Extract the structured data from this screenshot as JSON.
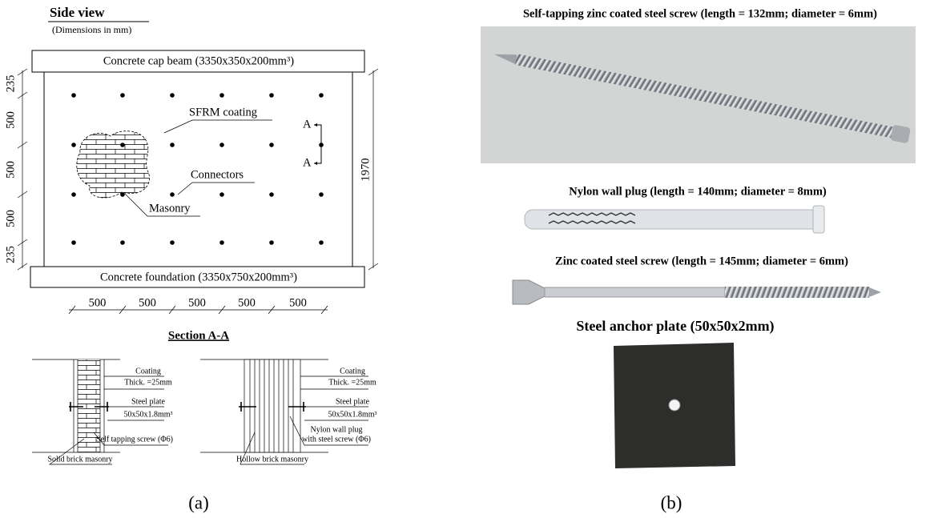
{
  "panel_a": {
    "title": "Side view",
    "subtitle": "(Dimensions in mm)",
    "cap_beam": "Concrete cap beam  (3350x350x200mm³)",
    "foundation": "Concrete foundation  (3350x750x200mm³)",
    "labels": {
      "coating": "SFRM coating",
      "connectors": "Connectors",
      "masonry": "Masonry"
    },
    "section_marks": [
      "A",
      "A"
    ],
    "left_dims": [
      "235",
      "500",
      "500",
      "500",
      "235"
    ],
    "total_height": "1970",
    "bottom_dims": [
      "500",
      "500",
      "500",
      "500",
      "500"
    ],
    "section_title": "Section A-A",
    "section_left": {
      "coating": "Coating",
      "thickness": "Thick. =25mm",
      "plate": "Steel plate",
      "plate_size": "50x50x1.8mm³",
      "connector": [
        "Self tapping screw (Φ6)"
      ],
      "masonry": "Solid brick masonry"
    },
    "section_right": {
      "coating": "Coating",
      "thickness": "Thick. =25mm",
      "plate": "Steel plate",
      "plate_size": "50x50x1.8mm³",
      "connector": [
        "Nylon wall plug",
        "with steel screw (Φ6)"
      ],
      "masonry": "Hollow brick masonry"
    },
    "caption": "(a)"
  },
  "panel_b": {
    "items": [
      "Self-tapping zinc coated steel screw (length = 132mm; diameter = 6mm)",
      "Nylon wall plug (length = 140mm; diameter = 8mm)",
      "Zinc coated steel screw (length = 145mm; diameter = 6mm)",
      "Steel anchor plate  (50x50x2mm)"
    ],
    "caption": "(b)"
  }
}
